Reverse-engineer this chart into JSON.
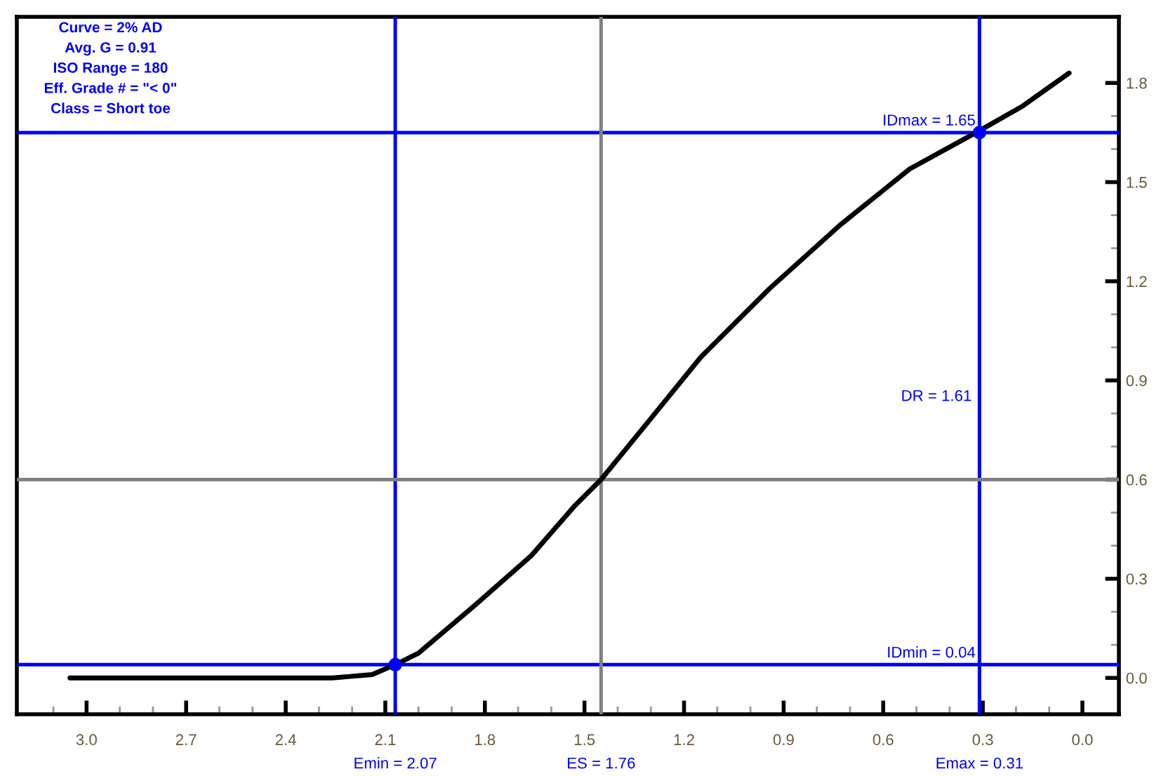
{
  "chart_data": {
    "type": "line",
    "x": [
      3.05,
      2.6,
      2.26,
      2.14,
      2.07,
      2.0,
      1.83,
      1.66,
      1.53,
      1.45,
      1.32,
      1.15,
      0.94,
      0.73,
      0.52,
      0.32,
      0.18,
      0.04
    ],
    "series": [
      {
        "color": "#000000",
        "values": [
          0.0,
          0.0,
          0.0,
          0.01,
          0.04,
          0.075,
          0.22,
          0.37,
          0.52,
          0.6,
          0.76,
          0.97,
          1.18,
          1.37,
          1.54,
          1.65,
          1.73,
          1.83
        ]
      },
      {
        "type": "scatter",
        "color": "#0000ff",
        "x": [
          2.07,
          0.31
        ],
        "values": [
          0.04,
          1.65
        ]
      }
    ],
    "xlim": [
      3.21,
      -0.11
    ],
    "ylim": [
      -0.11,
      2.0
    ],
    "xticks": [
      {
        "value": 3.0,
        "label": "3.0"
      },
      2.7,
      2.4,
      2.1,
      1.8,
      1.5,
      1.2,
      0.9,
      0.6,
      0.3,
      {
        "value": 0.0,
        "label": "0.0"
      },
      {
        "value": 3.1,
        "label": null
      },
      {
        "value": 2.9,
        "label": null
      },
      {
        "value": 2.8,
        "label": null
      },
      {
        "value": 2.6,
        "label": null
      },
      {
        "value": 2.5,
        "label": null
      },
      {
        "value": 2.3,
        "label": null
      },
      {
        "value": 2.2,
        "label": null
      },
      {
        "value": 2.0,
        "label": null
      },
      {
        "value": 1.9,
        "label": null
      },
      {
        "value": 1.7,
        "label": null
      },
      {
        "value": 1.6,
        "label": null
      },
      {
        "value": 1.4,
        "label": null
      },
      {
        "value": 1.3,
        "label": null
      },
      {
        "value": 1.1,
        "label": null
      },
      {
        "value": 1.0,
        "label": null
      },
      {
        "value": 0.8,
        "label": null
      },
      {
        "value": 0.7,
        "label": null
      },
      {
        "value": 0.5,
        "label": null
      },
      {
        "value": 0.4,
        "label": null
      },
      {
        "value": 0.2,
        "label": null
      },
      {
        "value": 0.1,
        "label": null
      }
    ],
    "yticks": [
      {
        "value": 0.0,
        "label": "0.0"
      },
      0.3,
      0.6,
      0.9,
      1.2,
      1.5,
      1.8,
      {
        "value": 0.1,
        "label": null
      },
      {
        "value": 0.2,
        "label": null
      },
      {
        "value": 0.4,
        "label": null
      },
      {
        "value": 0.5,
        "label": null
      },
      {
        "value": 0.7,
        "label": null
      },
      {
        "value": 0.8,
        "label": null
      },
      {
        "value": 1.0,
        "label": null
      },
      {
        "value": 1.1,
        "label": null
      },
      {
        "value": 1.3,
        "label": null
      },
      {
        "value": 1.4,
        "label": null
      },
      {
        "value": 1.6,
        "label": null
      },
      {
        "value": 1.7,
        "label": null
      }
    ],
    "ref_lines": [
      {
        "axis": "x",
        "value": 2.07,
        "label": "Emin = 2.07",
        "color": "#0000ff"
      },
      {
        "axis": "y",
        "value": 0.04,
        "label": "IDmin = 0.04",
        "color": "#0000ff"
      },
      {
        "axis": "x",
        "value": 0.31,
        "label": "Emax = 0.31",
        "color": "#0000ff"
      },
      {
        "axis": "y",
        "value": 1.65,
        "label": "IDmax = 1.65",
        "color": "#0000ff"
      },
      {
        "axis": "x",
        "value": 1.45,
        "color": "#808080"
      },
      {
        "axis": "y",
        "value": 0.6,
        "color": "#808080"
      }
    ],
    "annotations": [
      "Curve = 2% AD",
      "Avg. G = 0.91",
      "ISO Range = 180",
      "Eff. Grade # = \"< 0\"",
      "Class = Short toe",
      {
        "text": "DR = 1.61",
        "x": 0.31,
        "y": 0.85
      },
      {
        "text": "ES = 1.76",
        "x": 1.45,
        "y": -0.11
      }
    ],
    "grid": false,
    "legend": false
  }
}
